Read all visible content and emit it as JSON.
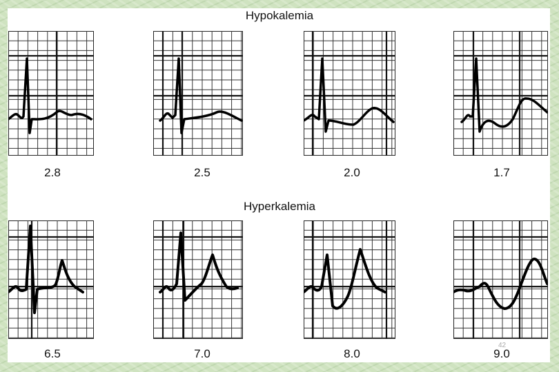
{
  "slide": {
    "page_number": "42",
    "sections": [
      {
        "title": "Hypokalemia",
        "ecgs": [
          {
            "label": "2.8"
          },
          {
            "label": "2.5"
          },
          {
            "label": "2.0"
          },
          {
            "label": "1.7"
          }
        ]
      },
      {
        "title": "Hyperkalemia",
        "ecgs": [
          {
            "label": "6.5"
          },
          {
            "label": "7.0"
          },
          {
            "label": "8.0"
          },
          {
            "label": "9.0"
          }
        ]
      }
    ]
  }
}
